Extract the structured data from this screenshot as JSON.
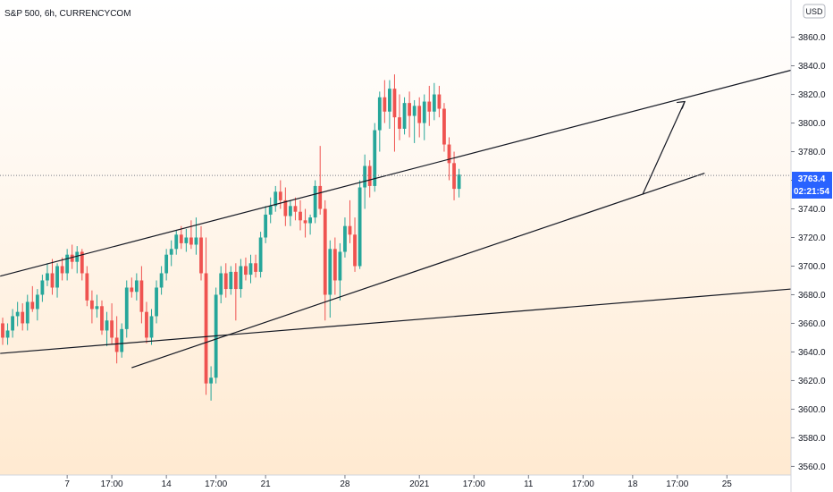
{
  "header": {
    "symbol_label": "S&P 500, 6h, CURRENCYCOM"
  },
  "currency_button": {
    "label": "USD"
  },
  "price_tag": {
    "value": "3763.4",
    "countdown": "02:21:54"
  },
  "colors": {
    "up": "#26a69a",
    "down": "#ef5350",
    "price_tag": "#2962ff",
    "trendline": "#131722"
  },
  "chart_data": {
    "type": "candlestick",
    "title": "S&P 500, 6h, CURRENCYCOM",
    "ylim": [
      3554,
      3886
    ],
    "y_ticks": [
      "3560.0",
      "3580.0",
      "3600.0",
      "3620.0",
      "3640.0",
      "3660.0",
      "3680.0",
      "3700.0",
      "3720.0",
      "3740.0",
      "3760.0",
      "3780.0",
      "3800.0",
      "3820.0",
      "3840.0",
      "3860.0"
    ],
    "y_tick_values": [
      3560,
      3580,
      3600,
      3620,
      3640,
      3660,
      3680,
      3700,
      3720,
      3740,
      3760,
      3780,
      3800,
      3820,
      3840,
      3860
    ],
    "x_ticks": [
      "7",
      "17:00",
      "14",
      "17:00",
      "21",
      "28",
      "2021",
      "17:00",
      "11",
      "17:00",
      "18",
      "17:00",
      "25"
    ],
    "x_tick_bars": [
      13,
      22,
      33,
      43,
      53,
      69,
      84,
      95,
      106,
      117,
      127,
      136,
      146
    ],
    "last_price": 3763.4,
    "current_price_line": 3763.4,
    "candles": [
      [
        3660,
        3664,
        3645,
        3650
      ],
      [
        3650,
        3660,
        3645,
        3655
      ],
      [
        3655,
        3670,
        3650,
        3665
      ],
      [
        3665,
        3675,
        3658,
        3668
      ],
      [
        3668,
        3674,
        3655,
        3660
      ],
      [
        3660,
        3680,
        3655,
        3675
      ],
      [
        3675,
        3686,
        3668,
        3670
      ],
      [
        3670,
        3684,
        3662,
        3680
      ],
      [
        3680,
        3694,
        3675,
        3690
      ],
      [
        3690,
        3702,
        3686,
        3695
      ],
      [
        3695,
        3705,
        3680,
        3685
      ],
      [
        3685,
        3702,
        3678,
        3700
      ],
      [
        3700,
        3706,
        3690,
        3695
      ],
      [
        3695,
        3712,
        3690,
        3708
      ],
      [
        3708,
        3715,
        3698,
        3703
      ],
      [
        3703,
        3714,
        3695,
        3710
      ],
      [
        3710,
        3712,
        3690,
        3695
      ],
      [
        3695,
        3700,
        3672,
        3676
      ],
      [
        3676,
        3683,
        3660,
        3670
      ],
      [
        3670,
        3680,
        3664,
        3672
      ],
      [
        3672,
        3676,
        3652,
        3655
      ],
      [
        3655,
        3668,
        3644,
        3662
      ],
      [
        3662,
        3674,
        3645,
        3650
      ],
      [
        3650,
        3665,
        3632,
        3640
      ],
      [
        3640,
        3660,
        3636,
        3656
      ],
      [
        3656,
        3690,
        3650,
        3685
      ],
      [
        3685,
        3692,
        3678,
        3682
      ],
      [
        3682,
        3695,
        3676,
        3690
      ],
      [
        3690,
        3700,
        3660,
        3668
      ],
      [
        3668,
        3675,
        3646,
        3650
      ],
      [
        3650,
        3670,
        3645,
        3665
      ],
      [
        3665,
        3690,
        3660,
        3685
      ],
      [
        3685,
        3700,
        3680,
        3695
      ],
      [
        3695,
        3712,
        3690,
        3708
      ],
      [
        3708,
        3718,
        3700,
        3712
      ],
      [
        3712,
        3725,
        3708,
        3722
      ],
      [
        3722,
        3728,
        3712,
        3716
      ],
      [
        3716,
        3726,
        3710,
        3720
      ],
      [
        3720,
        3732,
        3712,
        3715
      ],
      [
        3715,
        3734,
        3708,
        3720
      ],
      [
        3720,
        3728,
        3690,
        3695
      ],
      [
        3695,
        3720,
        3610,
        3618
      ],
      [
        3618,
        3630,
        3606,
        3622
      ],
      [
        3622,
        3685,
        3618,
        3680
      ],
      [
        3680,
        3700,
        3674,
        3695
      ],
      [
        3695,
        3702,
        3678,
        3684
      ],
      [
        3684,
        3700,
        3680,
        3696
      ],
      [
        3696,
        3702,
        3662,
        3684
      ],
      [
        3684,
        3705,
        3678,
        3700
      ],
      [
        3700,
        3706,
        3690,
        3694
      ],
      [
        3694,
        3708,
        3688,
        3702
      ],
      [
        3702,
        3708,
        3692,
        3696
      ],
      [
        3696,
        3724,
        3692,
        3720
      ],
      [
        3720,
        3742,
        3716,
        3736
      ],
      [
        3736,
        3748,
        3730,
        3742
      ],
      [
        3742,
        3756,
        3738,
        3752
      ],
      [
        3752,
        3760,
        3740,
        3746
      ],
      [
        3746,
        3755,
        3728,
        3735
      ],
      [
        3735,
        3746,
        3728,
        3742
      ],
      [
        3742,
        3748,
        3732,
        3738
      ],
      [
        3738,
        3746,
        3725,
        3732
      ],
      [
        3732,
        3740,
        3720,
        3730
      ],
      [
        3730,
        3736,
        3722,
        3734
      ],
      [
        3734,
        3760,
        3730,
        3756
      ],
      [
        3756,
        3784,
        3736,
        3740
      ],
      [
        3740,
        3746,
        3662,
        3680
      ],
      [
        3680,
        3718,
        3664,
        3712
      ],
      [
        3712,
        3720,
        3680,
        3690
      ],
      [
        3690,
        3716,
        3676,
        3710
      ],
      [
        3710,
        3734,
        3706,
        3728
      ],
      [
        3728,
        3746,
        3716,
        3722
      ],
      [
        3722,
        3734,
        3696,
        3700
      ],
      [
        3700,
        3760,
        3698,
        3755
      ],
      [
        3755,
        3778,
        3740,
        3770
      ],
      [
        3770,
        3774,
        3748,
        3756
      ],
      [
        3756,
        3800,
        3752,
        3795
      ],
      [
        3795,
        3822,
        3780,
        3818
      ],
      [
        3818,
        3830,
        3800,
        3808
      ],
      [
        3808,
        3830,
        3796,
        3824
      ],
      [
        3824,
        3834,
        3780,
        3804
      ],
      [
        3804,
        3820,
        3788,
        3796
      ],
      [
        3796,
        3818,
        3792,
        3814
      ],
      [
        3814,
        3822,
        3790,
        3805
      ],
      [
        3805,
        3816,
        3786,
        3812
      ],
      [
        3812,
        3818,
        3790,
        3800
      ],
      [
        3800,
        3820,
        3788,
        3815
      ],
      [
        3815,
        3826,
        3798,
        3808
      ],
      [
        3808,
        3828,
        3802,
        3820
      ],
      [
        3820,
        3826,
        3804,
        3810
      ],
      [
        3810,
        3814,
        3780,
        3785
      ],
      [
        3785,
        3790,
        3760,
        3772
      ],
      [
        3772,
        3780,
        3746,
        3754
      ],
      [
        3754,
        3768,
        3748,
        3764
      ]
    ]
  }
}
